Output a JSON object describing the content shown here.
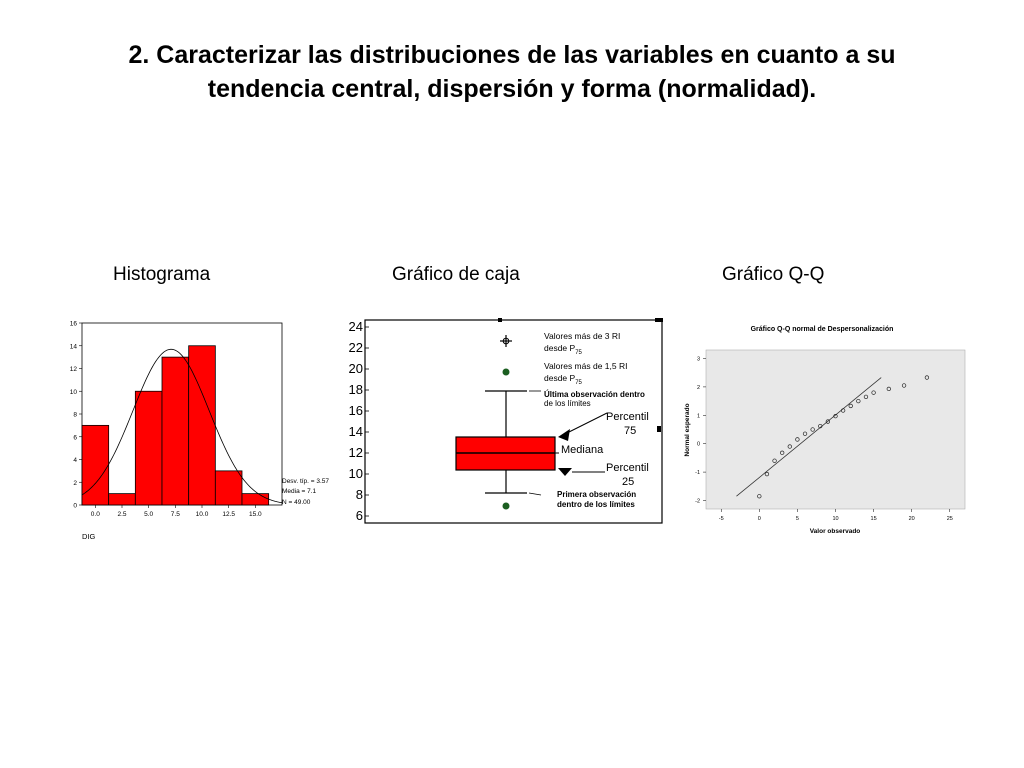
{
  "slide": {
    "title_line1": "2. Caracterizar las distribuciones de las variables en cuanto a su",
    "title_line2": "tendencia central, dispersión y forma (normalidad)."
  },
  "chart_data": [
    {
      "type": "bar",
      "caption": "Histograma",
      "xlabel": "DIG",
      "x_ticks": [
        "0.0",
        "2.5",
        "5.0",
        "7.5",
        "10.0",
        "12.5",
        "15.0"
      ],
      "y_ticks": [
        "0",
        "2",
        "4",
        "6",
        "8",
        "10",
        "12",
        "14",
        "16"
      ],
      "ylim": [
        0,
        16
      ],
      "xlim": [
        -1.25,
        17.5
      ],
      "bin_width": 2.5,
      "bin_centers": [
        0.0,
        2.5,
        5.0,
        7.5,
        10.0,
        12.5,
        15.0
      ],
      "values": [
        7,
        1,
        10,
        13,
        14,
        3,
        1
      ],
      "normal_curve": {
        "mean": 7.1,
        "sd": 3.57,
        "n": 49
      },
      "stats_labels": [
        "Desv. típ. = 3.57",
        "Media = 7.1",
        "N = 49.00"
      ],
      "bar_color": "#ff0000"
    },
    {
      "type": "box",
      "caption": "Gráfico de caja",
      "y_tick_fragments": [
        "24",
        "22",
        "20",
        "18",
        "16",
        "14",
        "12",
        "10",
        "8",
        "6"
      ],
      "box_color": "#ff0000",
      "annotations": {
        "extreme_line1": "Valores más de 3  RI",
        "extreme_line2": "desde P",
        "extreme_sub": "75",
        "outlier_line1": "Valores más de 1,5 RI",
        "outlier_line2": "desde P",
        "outlier_sub": "75",
        "whisker_top_line1": "Última observación dentro",
        "whisker_top_line2": "de los límites",
        "p75_line1": "Percentil",
        "p75_line2": "75",
        "median": "Mediana",
        "p25_line1": "Percentil",
        "p25_line2": "25",
        "whisker_bottom_line1": "Primera observación",
        "whisker_bottom_line2": "dentro de los límites"
      }
    },
    {
      "type": "scatter",
      "caption": "Gráfico Q-Q",
      "title": "Gráfico Q-Q normal de Despersonalización",
      "xlabel": "Valor observado",
      "ylabel": "Normal esperado",
      "x_ticks": [
        "-5",
        "0",
        "5",
        "10",
        "15",
        "20",
        "25"
      ],
      "y_ticks": [
        "-2",
        "-1",
        "0",
        "1",
        "2",
        "3"
      ],
      "xlim": [
        -7,
        27
      ],
      "ylim": [
        -2.3,
        3.3
      ],
      "points": [
        [
          0,
          -1.85
        ],
        [
          1,
          -1.07
        ],
        [
          2,
          -0.6
        ],
        [
          3,
          -0.32
        ],
        [
          4,
          -0.1
        ],
        [
          5,
          0.15
        ],
        [
          6,
          0.35
        ],
        [
          7,
          0.5
        ],
        [
          8,
          0.62
        ],
        [
          9,
          0.78
        ],
        [
          10,
          0.97
        ],
        [
          11,
          1.17
        ],
        [
          12,
          1.33
        ],
        [
          13,
          1.5
        ],
        [
          14,
          1.65
        ],
        [
          15,
          1.8
        ],
        [
          17,
          1.93
        ],
        [
          19,
          2.05
        ],
        [
          22,
          2.33
        ]
      ],
      "reference_line": [
        [
          -3,
          -1.85
        ],
        [
          16,
          2.33
        ]
      ]
    }
  ]
}
